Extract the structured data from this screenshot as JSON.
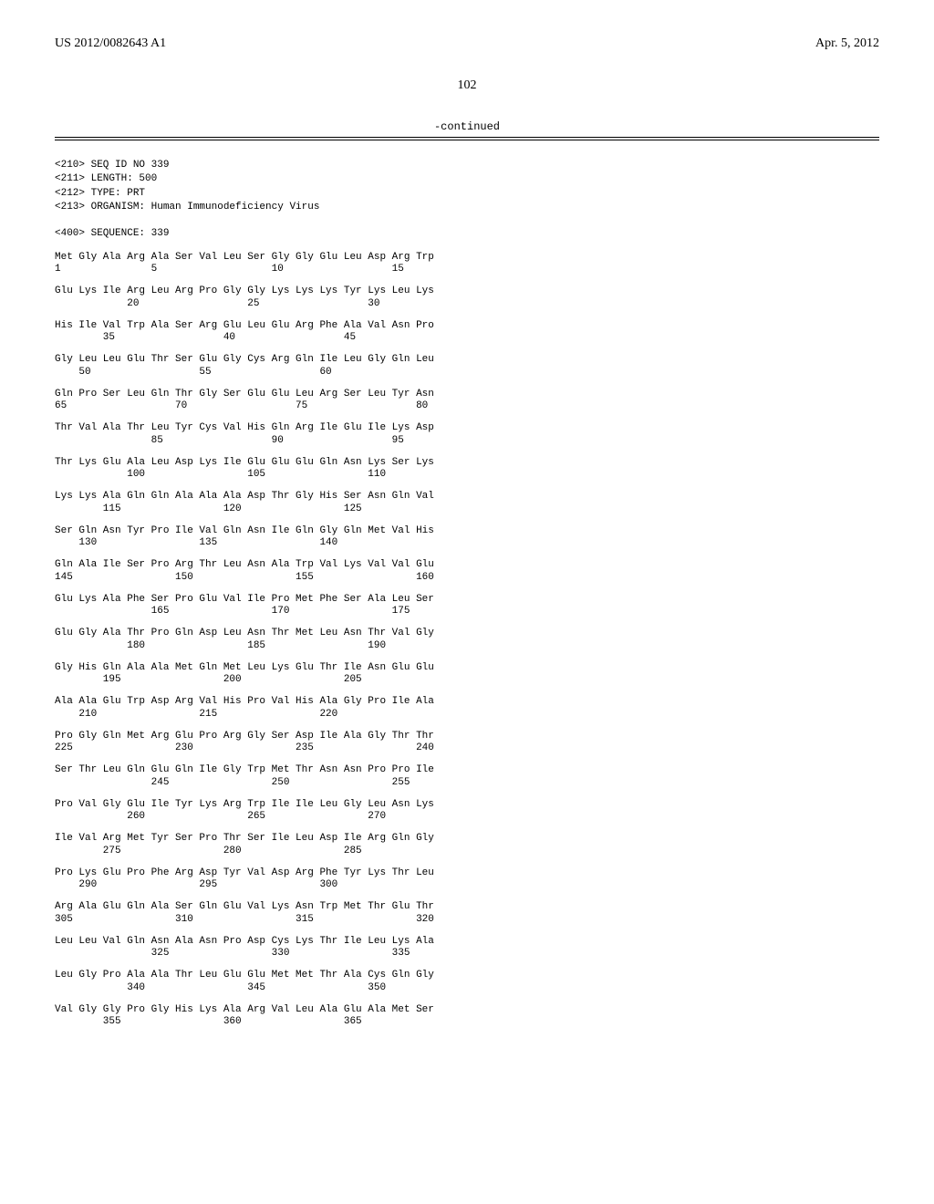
{
  "header": {
    "pub_number": "US 2012/0082643 A1",
    "pub_date": "Apr. 5, 2012"
  },
  "page_number": "102",
  "continued_label": "-continued",
  "meta": {
    "line1": "<210> SEQ ID NO 339",
    "line2": "<211> LENGTH: 500",
    "line3": "<212> TYPE: PRT",
    "line4": "<213> ORGANISM: Human Immunodeficiency Virus"
  },
  "sequence_title": "<400> SEQUENCE: 339",
  "rows": [
    {
      "aa": "Met Gly Ala Arg Ala Ser Val Leu Ser Gly Gly Glu Leu Asp Arg Trp",
      "nums": "1               5                   10                  15"
    },
    {
      "aa": "Glu Lys Ile Arg Leu Arg Pro Gly Gly Lys Lys Lys Tyr Lys Leu Lys",
      "nums": "            20                  25                  30"
    },
    {
      "aa": "His Ile Val Trp Ala Ser Arg Glu Leu Glu Arg Phe Ala Val Asn Pro",
      "nums": "        35                  40                  45"
    },
    {
      "aa": "Gly Leu Leu Glu Thr Ser Glu Gly Cys Arg Gln Ile Leu Gly Gln Leu",
      "nums": "    50                  55                  60"
    },
    {
      "aa": "Gln Pro Ser Leu Gln Thr Gly Ser Glu Glu Leu Arg Ser Leu Tyr Asn",
      "nums": "65                  70                  75                  80"
    },
    {
      "aa": "Thr Val Ala Thr Leu Tyr Cys Val His Gln Arg Ile Glu Ile Lys Asp",
      "nums": "                85                  90                  95"
    },
    {
      "aa": "Thr Lys Glu Ala Leu Asp Lys Ile Glu Glu Glu Gln Asn Lys Ser Lys",
      "nums": "            100                 105                 110"
    },
    {
      "aa": "Lys Lys Ala Gln Gln Ala Ala Ala Asp Thr Gly His Ser Asn Gln Val",
      "nums": "        115                 120                 125"
    },
    {
      "aa": "Ser Gln Asn Tyr Pro Ile Val Gln Asn Ile Gln Gly Gln Met Val His",
      "nums": "    130                 135                 140"
    },
    {
      "aa": "Gln Ala Ile Ser Pro Arg Thr Leu Asn Ala Trp Val Lys Val Val Glu",
      "nums": "145                 150                 155                 160"
    },
    {
      "aa": "Glu Lys Ala Phe Ser Pro Glu Val Ile Pro Met Phe Ser Ala Leu Ser",
      "nums": "                165                 170                 175"
    },
    {
      "aa": "Glu Gly Ala Thr Pro Gln Asp Leu Asn Thr Met Leu Asn Thr Val Gly",
      "nums": "            180                 185                 190"
    },
    {
      "aa": "Gly His Gln Ala Ala Met Gln Met Leu Lys Glu Thr Ile Asn Glu Glu",
      "nums": "        195                 200                 205"
    },
    {
      "aa": "Ala Ala Glu Trp Asp Arg Val His Pro Val His Ala Gly Pro Ile Ala",
      "nums": "    210                 215                 220"
    },
    {
      "aa": "Pro Gly Gln Met Arg Glu Pro Arg Gly Ser Asp Ile Ala Gly Thr Thr",
      "nums": "225                 230                 235                 240"
    },
    {
      "aa": "Ser Thr Leu Gln Glu Gln Ile Gly Trp Met Thr Asn Asn Pro Pro Ile",
      "nums": "                245                 250                 255"
    },
    {
      "aa": "Pro Val Gly Glu Ile Tyr Lys Arg Trp Ile Ile Leu Gly Leu Asn Lys",
      "nums": "            260                 265                 270"
    },
    {
      "aa": "Ile Val Arg Met Tyr Ser Pro Thr Ser Ile Leu Asp Ile Arg Gln Gly",
      "nums": "        275                 280                 285"
    },
    {
      "aa": "Pro Lys Glu Pro Phe Arg Asp Tyr Val Asp Arg Phe Tyr Lys Thr Leu",
      "nums": "    290                 295                 300"
    },
    {
      "aa": "Arg Ala Glu Gln Ala Ser Gln Glu Val Lys Asn Trp Met Thr Glu Thr",
      "nums": "305                 310                 315                 320"
    },
    {
      "aa": "Leu Leu Val Gln Asn Ala Asn Pro Asp Cys Lys Thr Ile Leu Lys Ala",
      "nums": "                325                 330                 335"
    },
    {
      "aa": "Leu Gly Pro Ala Ala Thr Leu Glu Glu Met Met Thr Ala Cys Gln Gly",
      "nums": "            340                 345                 350"
    },
    {
      "aa": "Val Gly Gly Pro Gly His Lys Ala Arg Val Leu Ala Glu Ala Met Ser",
      "nums": "        355                 360                 365"
    }
  ]
}
